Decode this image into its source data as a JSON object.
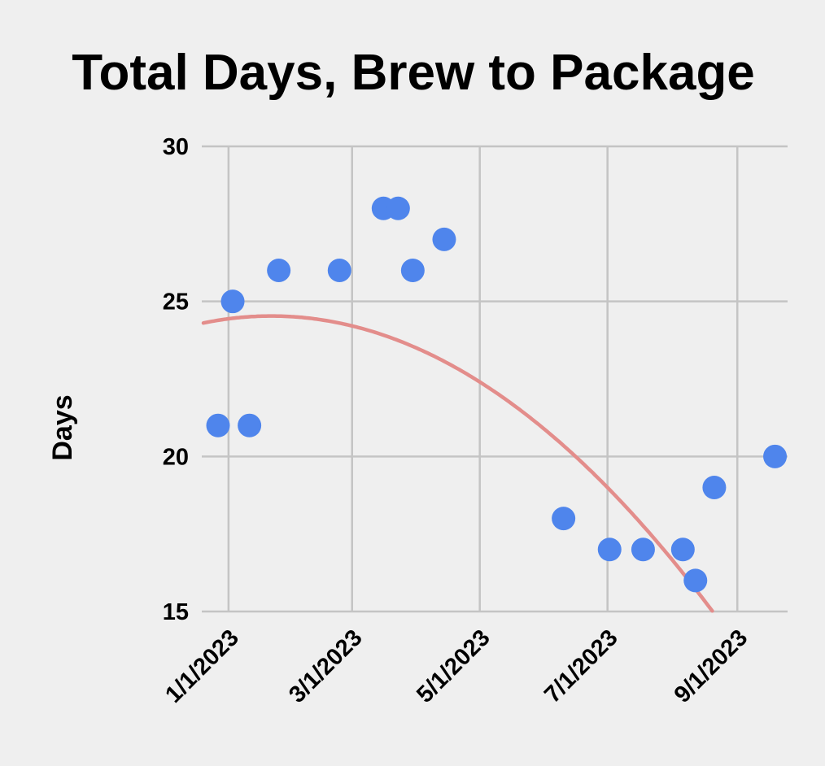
{
  "chart_data": {
    "type": "scatter",
    "title": "Total Days, Brew to Package",
    "xlabel": "",
    "ylabel": "Days",
    "x_tick_labels": [
      "1/1/2023",
      "3/1/2023",
      "5/1/2023",
      "7/1/2023",
      "9/1/2023"
    ],
    "x_tick_days": [
      0,
      59,
      120,
      181,
      243
    ],
    "xlim_days": [
      -12,
      267
    ],
    "ylim": [
      15,
      30
    ],
    "y_ticks": [
      15,
      20,
      25,
      30
    ],
    "grid": true,
    "legend": "none",
    "series": [
      {
        "name": "Total Days",
        "color": "#4f85ec",
        "points": [
          {
            "date": "12/27/2022",
            "day": -5,
            "value": 21
          },
          {
            "date": "1/3/2023",
            "day": 2,
            "value": 25
          },
          {
            "date": "1/11/2023",
            "day": 10,
            "value": 21
          },
          {
            "date": "1/25/2023",
            "day": 24,
            "value": 26
          },
          {
            "date": "2/23/2023",
            "day": 53,
            "value": 26
          },
          {
            "date": "3/16/2023",
            "day": 74,
            "value": 28
          },
          {
            "date": "3/23/2023",
            "day": 81,
            "value": 28
          },
          {
            "date": "3/30/2023",
            "day": 88,
            "value": 26
          },
          {
            "date": "4/14/2023",
            "day": 103,
            "value": 27
          },
          {
            "date": "6/10/2023",
            "day": 160,
            "value": 18
          },
          {
            "date": "7/2/2023",
            "day": 182,
            "value": 17
          },
          {
            "date": "7/18/2023",
            "day": 198,
            "value": 17
          },
          {
            "date": "8/6/2023",
            "day": 217,
            "value": 17
          },
          {
            "date": "8/12/2023",
            "day": 223,
            "value": 16
          },
          {
            "date": "8/21/2023",
            "day": 232,
            "value": 19
          },
          {
            "date": "9/19/2023",
            "day": 261,
            "value": 20
          }
        ]
      }
    ],
    "trendline": {
      "type": "polynomial",
      "color": "#e38d8b",
      "coefficients": [
        24.44,
        0.00876,
        -0.0002145
      ],
      "x_range_days": [
        -12,
        261
      ]
    }
  }
}
